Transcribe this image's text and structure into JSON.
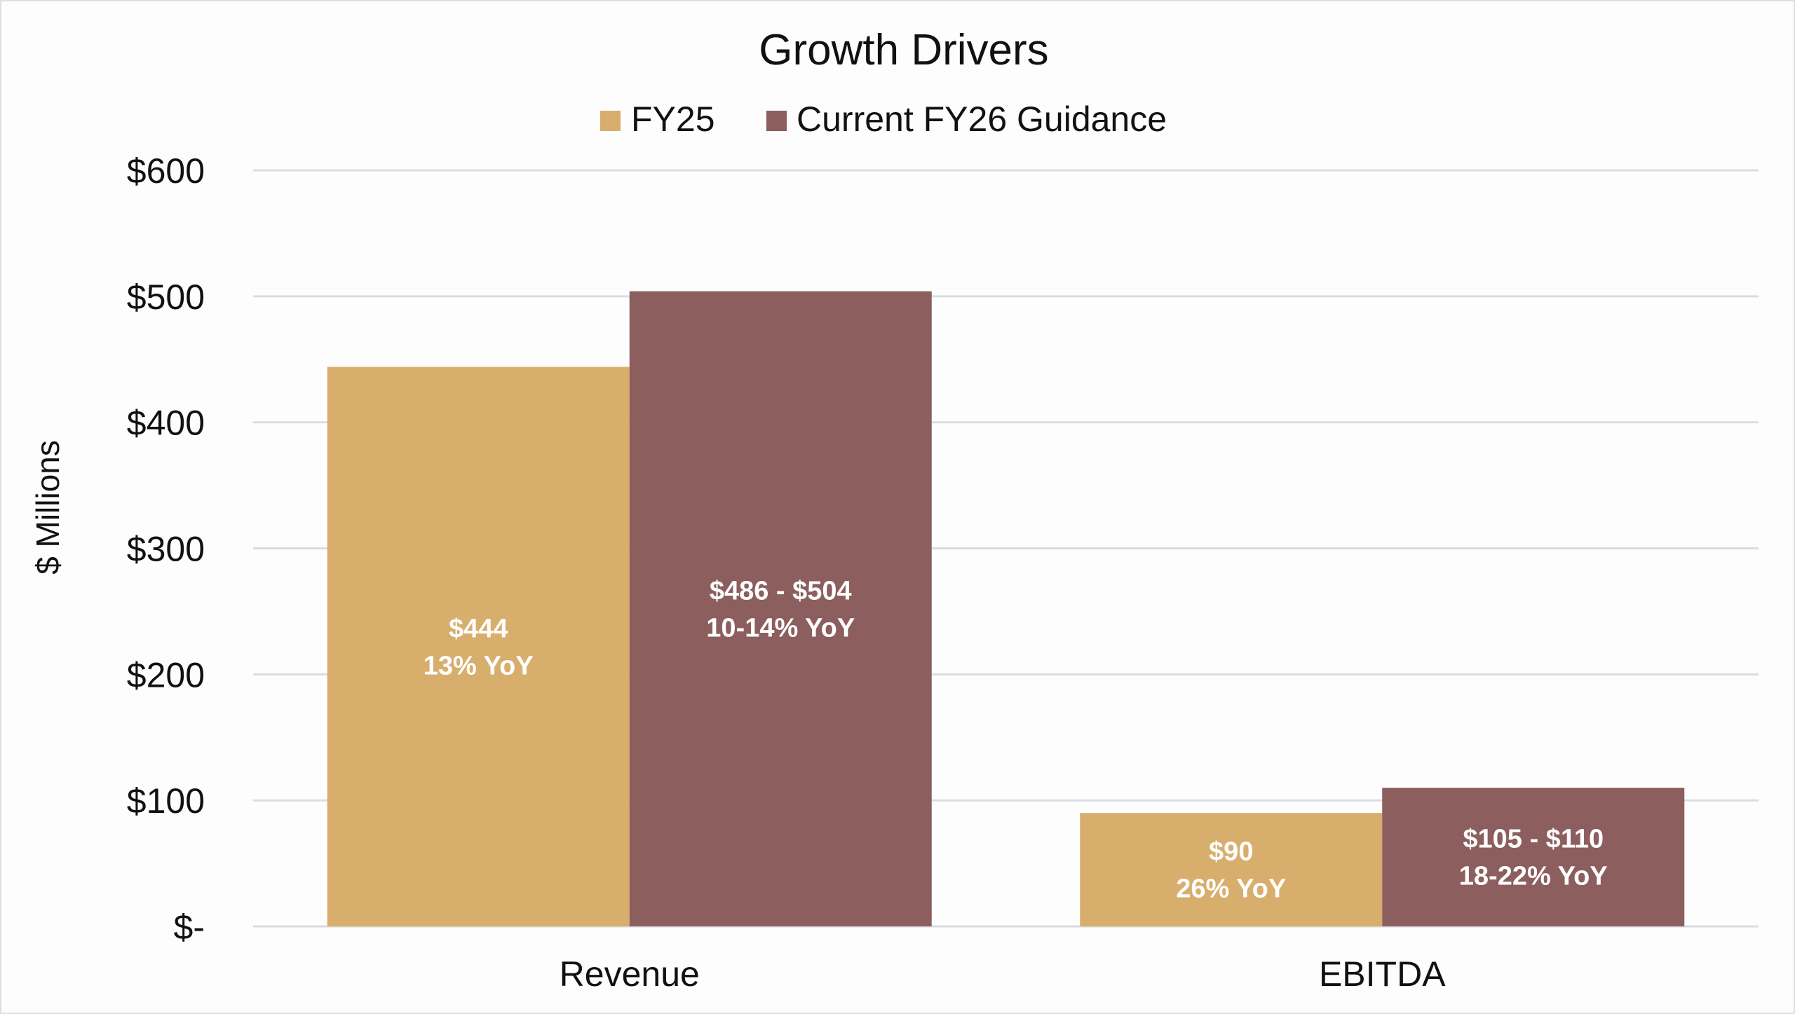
{
  "chart_data": {
    "type": "bar",
    "title": "Growth Drivers",
    "xlabel": "",
    "ylabel": "$ Millions",
    "ylim": [
      0,
      600
    ],
    "yticks": [
      0,
      100,
      200,
      300,
      400,
      500,
      600
    ],
    "ytick_labels": [
      "$-",
      "$100",
      "$200",
      "$300",
      "$400",
      "$500",
      "$600"
    ],
    "grid": true,
    "legend_position": "top-center",
    "categories": [
      "Revenue",
      "EBITDA"
    ],
    "series": [
      {
        "name": "FY25",
        "color": "#D7AE6C",
        "values": [
          444,
          90
        ],
        "labels": [
          [
            "$444",
            "13% YoY"
          ],
          [
            "$90",
            "26% YoY"
          ]
        ]
      },
      {
        "name": "Current FY26 Guidance",
        "color": "#8C5E5E",
        "values": [
          504,
          110
        ],
        "range_low": [
          486,
          105
        ],
        "range_high": [
          504,
          110
        ],
        "labels": [
          [
            "$486 - $504",
            "10-14% YoY"
          ],
          [
            "$105 - $110",
            "18-22% YoY"
          ]
        ]
      }
    ]
  }
}
